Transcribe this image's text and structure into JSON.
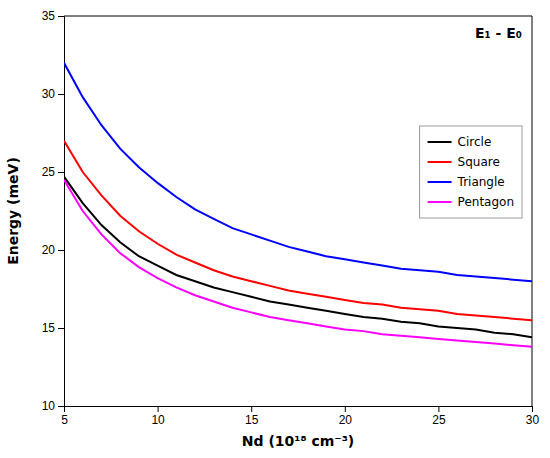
{
  "chart_data": {
    "type": "line",
    "xlabel": "Nd (10¹⁸ cm⁻³)",
    "ylabel": "Energy (meV)",
    "annotation": "E₁ - E₀",
    "xlim": [
      5,
      30
    ],
    "ylim": [
      10,
      35
    ],
    "xticks": [
      5,
      10,
      15,
      20,
      25,
      30
    ],
    "yticks": [
      10,
      15,
      20,
      25,
      30,
      35
    ],
    "legend": "right",
    "grid": false,
    "x": [
      5,
      6,
      7,
      8,
      9,
      10,
      11,
      12,
      13,
      14,
      15,
      16,
      17,
      18,
      19,
      20,
      21,
      22,
      23,
      24,
      25,
      26,
      27,
      28,
      29,
      30
    ],
    "series": [
      {
        "name": "Circle",
        "color": "black",
        "values": [
          24.7,
          23.0,
          21.6,
          20.5,
          19.6,
          19.0,
          18.4,
          18.0,
          17.6,
          17.3,
          17.0,
          16.7,
          16.5,
          16.3,
          16.1,
          15.9,
          15.7,
          15.6,
          15.4,
          15.3,
          15.1,
          15.0,
          14.9,
          14.7,
          14.6,
          14.4
        ]
      },
      {
        "name": "Square",
        "color": "red",
        "values": [
          27.0,
          25.0,
          23.5,
          22.2,
          21.2,
          20.4,
          19.7,
          19.2,
          18.7,
          18.3,
          18.0,
          17.7,
          17.4,
          17.2,
          17.0,
          16.8,
          16.6,
          16.5,
          16.3,
          16.2,
          16.1,
          15.9,
          15.8,
          15.7,
          15.6,
          15.5
        ]
      },
      {
        "name": "Triangle",
        "color": "blue",
        "values": [
          32.0,
          29.8,
          28.0,
          26.5,
          25.3,
          24.3,
          23.4,
          22.6,
          22.0,
          21.4,
          21.0,
          20.6,
          20.2,
          19.9,
          19.6,
          19.4,
          19.2,
          19.0,
          18.8,
          18.7,
          18.6,
          18.4,
          18.3,
          18.2,
          18.1,
          18.0
        ]
      },
      {
        "name": "Pentagon",
        "color": "magenta",
        "values": [
          24.5,
          22.5,
          21.0,
          19.8,
          18.9,
          18.2,
          17.6,
          17.1,
          16.7,
          16.3,
          16.0,
          15.7,
          15.5,
          15.3,
          15.1,
          14.9,
          14.8,
          14.6,
          14.5,
          14.4,
          14.3,
          14.2,
          14.1,
          14.0,
          13.9,
          13.8
        ]
      }
    ]
  }
}
